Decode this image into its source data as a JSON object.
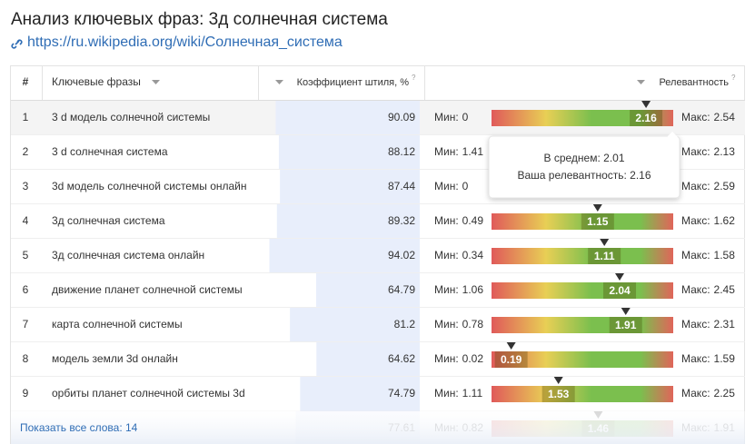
{
  "header": {
    "title": "Анализ ключевых фраз: 3д солнечная система",
    "url": "https://ru.wikipedia.org/wiki/Солнечная_система"
  },
  "table": {
    "headers": {
      "num": "#",
      "phrase": "Ключевые фразы",
      "coef": "Коэффициент штиля, %",
      "coef_help": "?",
      "relevance": "Релевантность",
      "relevance_help": "?"
    },
    "min_label": "Мин:",
    "max_label": "Макс:",
    "rows": [
      {
        "num": 1,
        "phrase": "3 d модель солнечной системы",
        "coef": 90.09,
        "min": 0,
        "value": 2.16,
        "max": 2.54
      },
      {
        "num": 2,
        "phrase": "3 d солнечная система",
        "coef": 88.12,
        "min": 1.41,
        "max": 2.13
      },
      {
        "num": 3,
        "phrase": "3d модель солнечной системы онлайн",
        "coef": 87.44,
        "min": 0,
        "max": 2.59
      },
      {
        "num": 4,
        "phrase": "3д солнечная система",
        "coef": 89.32,
        "min": 0.49,
        "value": 1.15,
        "max": 1.62
      },
      {
        "num": 5,
        "phrase": "3д солнечная система онлайн",
        "coef": 94.02,
        "min": 0.34,
        "value": 1.11,
        "max": 1.58
      },
      {
        "num": 6,
        "phrase": "движение планет солнечной системы",
        "coef": 64.79,
        "min": 1.06,
        "value": 2.04,
        "max": 2.45
      },
      {
        "num": 7,
        "phrase": "карта солнечной системы",
        "coef": 81.2,
        "min": 0.78,
        "value": 1.91,
        "max": 2.31
      },
      {
        "num": 8,
        "phrase": "модель земли 3d онлайн",
        "coef": 64.62,
        "min": 0.02,
        "value": 0.19,
        "max": 1.59
      },
      {
        "num": 9,
        "phrase": "орбиты планет солнечной системы 3d",
        "coef": 74.79,
        "min": 1.11,
        "value": 1.53,
        "max": 2.25
      },
      {
        "coef": 77.61,
        "min": 0.82,
        "value": 1.46,
        "max": 1.91
      }
    ],
    "footer": "Показать все слова: 14"
  },
  "tooltip": {
    "average": "В среднем: 2.01",
    "yours": "Ваша релевантность: 2.16"
  }
}
